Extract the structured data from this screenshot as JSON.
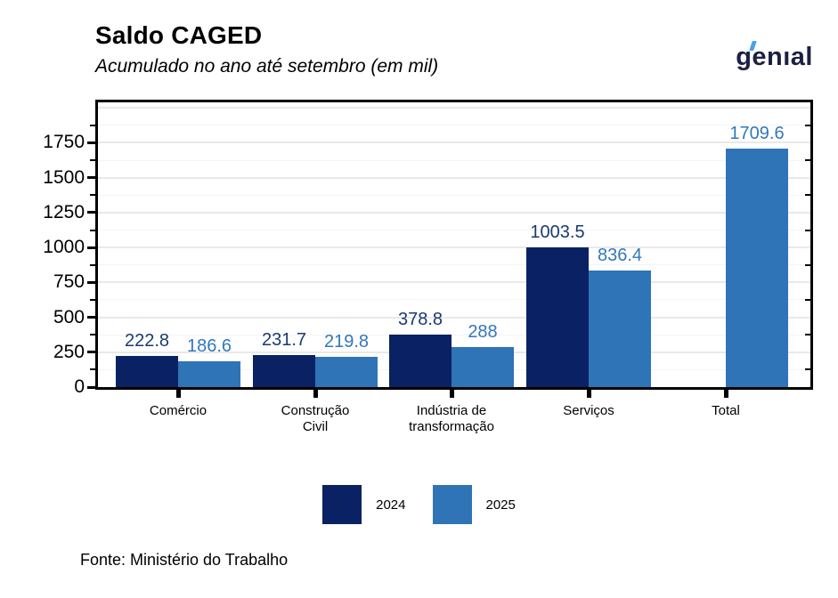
{
  "header": {
    "title": "Saldo CAGED",
    "subtitle": "Acumulado no ano até setembro (em mil)",
    "logo_text": "genıal"
  },
  "chart_data": {
    "type": "bar",
    "title": "Saldo CAGED",
    "subtitle": "Acumulado no ano até setembro (em mil)",
    "categories": [
      "Comércio",
      "Construção\nCivil",
      "Indústria de\ntransformação",
      "Serviços",
      "Total"
    ],
    "series": [
      {
        "name": "2024",
        "color": "#0a2263",
        "label_color": "#1a3a72",
        "values": [
          222.8,
          231.7,
          378.8,
          1003.5,
          null
        ]
      },
      {
        "name": "2025",
        "color": "#2e74b6",
        "label_color": "#3277bd",
        "values": [
          186.6,
          219.8,
          288,
          836.4,
          1709.6
        ]
      }
    ],
    "data_labels": [
      [
        "222.8",
        "231.7",
        "378.8",
        "1003.5",
        null
      ],
      [
        "186.6",
        "219.8",
        "288",
        "836.4",
        "1709.6"
      ]
    ],
    "yticks": [
      0,
      250,
      500,
      750,
      1000,
      1250,
      1500,
      1750
    ],
    "ylim": [
      0,
      2040
    ],
    "grid": true,
    "legend_position": "bottom",
    "xlabel": "",
    "ylabel": ""
  },
  "footer": {
    "source": "Fonte: Ministério do Trabalho"
  }
}
